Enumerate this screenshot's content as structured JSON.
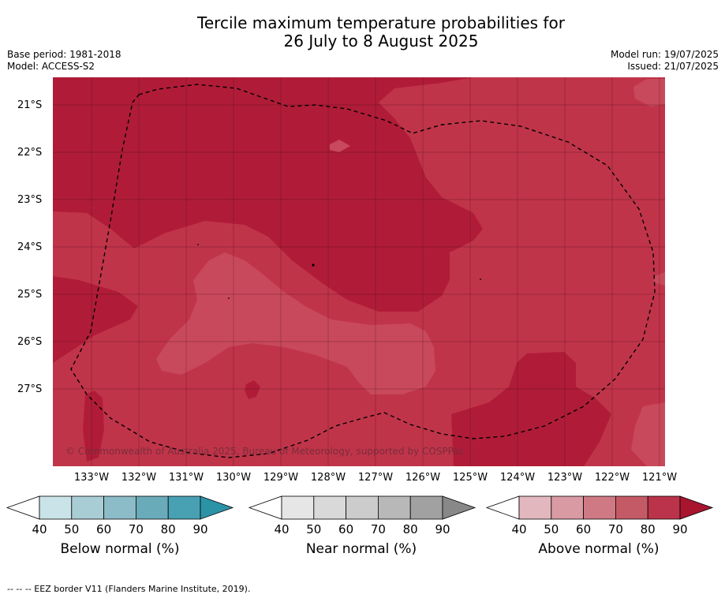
{
  "title_line1": "Tercile maximum temperature probabilities for",
  "title_line2": "26 July to 8 August 2025",
  "meta": {
    "base_period": "Base period: 1981-2018",
    "model": "Model: ACCESS-S2",
    "model_run": "Model run: 19/07/2025",
    "issued": "Issued: 21/07/2025"
  },
  "map": {
    "lat_labels": [
      "21°S",
      "22°S",
      "23°S",
      "24°S",
      "25°S",
      "26°S",
      "27°S"
    ],
    "lon_labels": [
      "133°W",
      "132°W",
      "131°W",
      "130°W",
      "129°W",
      "128°W",
      "127°W",
      "126°W",
      "125°W",
      "124°W",
      "123°W",
      "122°W",
      "121°W"
    ],
    "copyright": "© Commonwealth of Australia 2025, Bureau of Meteorology, supported by COSPPac",
    "colors": {
      "above_80": "#b01c38",
      "above_70": "#c03449",
      "above_60": "#c8495b",
      "above_50": "#d0616f"
    }
  },
  "colorbars": [
    {
      "title": "Below normal (%)",
      "ticks": [
        "40",
        "50",
        "60",
        "70",
        "80",
        "90"
      ],
      "colors": [
        "#ffffff",
        "#cae3e8",
        "#a9cdd4",
        "#8cbcc7",
        "#6aabba",
        "#47a1b3",
        "#2b93a6"
      ]
    },
    {
      "title": "Near normal (%)",
      "ticks": [
        "40",
        "50",
        "60",
        "70",
        "80",
        "90"
      ],
      "colors": [
        "#ffffff",
        "#e6e6e6",
        "#d9d9d9",
        "#cccccc",
        "#b8b8b8",
        "#a1a1a1",
        "#888888"
      ]
    },
    {
      "title": "Above normal (%)",
      "ticks": [
        "40",
        "50",
        "60",
        "70",
        "80",
        "90"
      ],
      "colors": [
        "#ffffff",
        "#e2b8be",
        "#d99aa3",
        "#cf7984",
        "#c55a67",
        "#bb334a",
        "#a8152f"
      ]
    }
  ],
  "footer": "--  --  -- EEZ border V11 (Flanders Marine Institute, 2019)."
}
